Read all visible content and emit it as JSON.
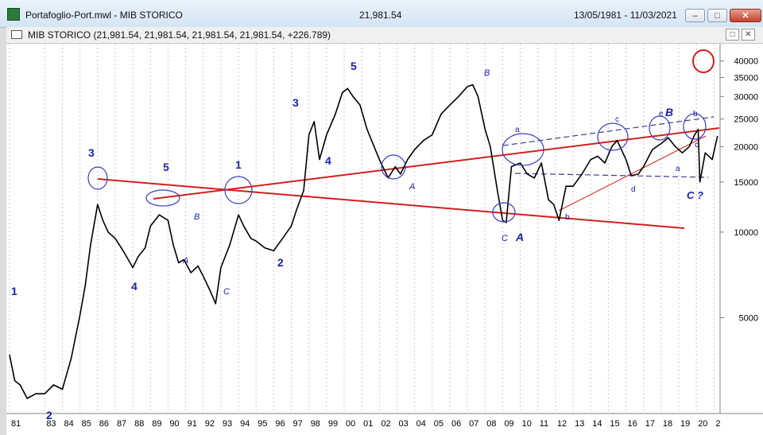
{
  "window": {
    "title": "Portafoglio-Port.mwl - MIB STORICO",
    "last_value": "21,981.54",
    "date_range": "13/05/1981 - 11/03/2021",
    "minimize": "–",
    "maximize": "□",
    "close": "✕"
  },
  "chart_window": {
    "legend": "MIB STORICO (21,981.54, 21,981.54, 21,981.54, 21,981.54, +226.789)",
    "restore": "□",
    "close": "✕"
  },
  "colors": {
    "trendline": "#d21e1e",
    "annotation": "#1a22a8",
    "price": "#000000",
    "background": "#ffffff",
    "grid": "#c9c9c9"
  },
  "chart_data": {
    "type": "line",
    "scale": "log",
    "ylim": [
      2300,
      46000
    ],
    "y_ticks": [
      5000,
      10000,
      15000,
      20000,
      25000,
      30000,
      35000,
      40000
    ],
    "y_tick_labels": [
      "5000",
      "10000",
      "15000",
      "20000",
      "25000",
      "30000",
      "35000",
      "40000"
    ],
    "x_tick_labels": [
      "81",
      "83",
      "84",
      "85",
      "86",
      "87",
      "88",
      "89",
      "90",
      "91",
      "92",
      "93",
      "94",
      "95",
      "96",
      "97",
      "98",
      "99",
      "00",
      "01",
      "02",
      "03",
      "04",
      "05",
      "06",
      "07",
      "08",
      "09",
      "10",
      "11",
      "12",
      "13",
      "14",
      "15",
      "16",
      "17",
      "18",
      "19",
      "20",
      "2"
    ],
    "x_ticks_data": [
      1981,
      1983,
      1984,
      1985,
      1986,
      1987,
      1988,
      1989,
      1990,
      1991,
      1992,
      1993,
      1994,
      1995,
      1996,
      1997,
      1998,
      1999,
      2000,
      2001,
      2002,
      2003,
      2004,
      2005,
      2006,
      2007,
      2008,
      2009,
      2010,
      2011,
      2012,
      2013,
      2014,
      2015,
      2016,
      2017,
      2018,
      2019,
      2020,
      2021
    ],
    "series": [
      {
        "x": [
          1981.0,
          1981.3,
          1981.6,
          1982.0,
          1982.5,
          1983.0,
          1983.5,
          1984.0,
          1984.5,
          1985.0,
          1985.3,
          1985.6,
          1986.0,
          1986.3,
          1986.6,
          1987.0,
          1987.5,
          1988.0,
          1988.3,
          1988.7,
          1989.0,
          1989.5,
          1990.0,
          1990.3,
          1990.6,
          1990.9,
          1991.3,
          1991.7,
          1992.0,
          1992.4,
          1992.7,
          1993.0,
          1993.5,
          1994.0,
          1994.3,
          1994.7,
          1995.0,
          1995.5,
          1996.0,
          1996.5,
          1997.0,
          1997.3,
          1997.7,
          1998.0,
          1998.3,
          1998.6,
          1999.0,
          1999.5,
          1999.9,
          2000.2,
          2000.5,
          2000.9,
          2001.3,
          2001.7,
          2002.0,
          2002.5,
          2002.9,
          2003.2,
          2003.6,
          2004.0,
          2004.5,
          2005.0,
          2005.5,
          2006.0,
          2006.5,
          2007.0,
          2007.3,
          2007.6,
          2008.0,
          2008.3,
          2008.7,
          2009.0,
          2009.2,
          2009.5,
          2010.0,
          2010.4,
          2010.8,
          2011.2,
          2011.6,
          2011.9,
          2012.2,
          2012.6,
          2013.0,
          2013.5,
          2014.0,
          2014.4,
          2014.8,
          2015.2,
          2015.5,
          2016.0,
          2016.3,
          2016.7,
          2017.0,
          2017.5,
          2018.0,
          2018.4,
          2018.8,
          2019.2,
          2019.6,
          2019.9,
          2020.1,
          2020.2,
          2020.5,
          2020.9,
          2021.1,
          2021.2
        ],
        "y": [
          3700,
          3000,
          2900,
          2600,
          2700,
          2700,
          2900,
          2800,
          3600,
          5100,
          6500,
          9000,
          12500,
          11000,
          10000,
          9500,
          8500,
          7500,
          8200,
          8800,
          10500,
          11500,
          11000,
          9000,
          7800,
          8000,
          7200,
          7600,
          7000,
          6200,
          5600,
          7500,
          9000,
          11500,
          10500,
          9500,
          9300,
          8800,
          8600,
          9500,
          10500,
          12000,
          14000,
          22000,
          24500,
          18000,
          22000,
          26000,
          31000,
          32000,
          30000,
          28000,
          23000,
          20000,
          18000,
          15500,
          17000,
          16000,
          18000,
          19500,
          21000,
          22000,
          26000,
          28000,
          30000,
          32500,
          33000,
          30000,
          23000,
          20000,
          14000,
          11000,
          10800,
          17000,
          17500,
          16000,
          15500,
          17500,
          13000,
          12500,
          11000,
          14500,
          14500,
          16000,
          18000,
          18500,
          17500,
          20000,
          21000,
          18000,
          15800,
          16000,
          17000,
          19500,
          20500,
          21500,
          20000,
          19000,
          20000,
          22000,
          23000,
          15000,
          19000,
          18000,
          20500,
          21800
        ]
      }
    ],
    "annotations": {
      "wave_labels": [
        "1",
        "2",
        "3",
        "4",
        "5",
        "1",
        "2",
        "3",
        "4",
        "5",
        "A",
        "B",
        "C",
        "A",
        "B",
        "C",
        "A",
        "C ?",
        "B",
        "e",
        "a",
        "b",
        "c",
        "d",
        "a",
        "b",
        "c"
      ]
    }
  }
}
